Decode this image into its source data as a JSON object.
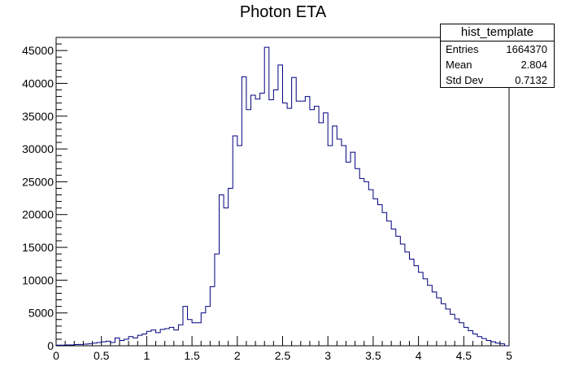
{
  "chart_data": {
    "type": "histogram",
    "title": "Photon ETA",
    "xlim": [
      0,
      5
    ],
    "ylim": [
      0,
      47000
    ],
    "bin_width": 0.05,
    "line_color": "#00007f",
    "x_ticks": [
      "0",
      "0.5",
      "1",
      "1.5",
      "2",
      "2.5",
      "3",
      "3.5",
      "4",
      "4.5",
      "5"
    ],
    "y_ticks": [
      "0",
      "5000",
      "10000",
      "15000",
      "20000",
      "25000",
      "30000",
      "35000",
      "40000",
      "45000"
    ],
    "bin_edges_start": 0,
    "counts": [
      100,
      100,
      120,
      130,
      180,
      200,
      250,
      300,
      400,
      500,
      600,
      700,
      500,
      1200,
      800,
      1000,
      1400,
      1200,
      1600,
      1800,
      2200,
      2400,
      2000,
      2500,
      2600,
      2800,
      2400,
      3200,
      6000,
      4000,
      3500,
      3500,
      5000,
      6000,
      9000,
      14000,
      23000,
      21000,
      24000,
      32000,
      30500,
      41000,
      36000,
      38200,
      37600,
      38500,
      45500,
      37500,
      39000,
      42800,
      37000,
      36200,
      40900,
      37300,
      37300,
      38000,
      36000,
      36500,
      34000,
      35500,
      30500,
      33500,
      31500,
      30500,
      28000,
      29500,
      27000,
      25500,
      25000,
      23800,
      22400,
      21500,
      20300,
      19000,
      17800,
      16700,
      15500,
      14300,
      13200,
      12200,
      11200,
      10200,
      9200,
      8200,
      7300,
      6400,
      5600,
      4800,
      4100,
      3500,
      2800,
      2300,
      1800,
      1400,
      1100,
      800,
      600,
      400,
      300,
      0
    ]
  },
  "stats_box": {
    "title": "hist_template",
    "rows": [
      {
        "label": "Entries",
        "value": "1664370"
      },
      {
        "label": "Mean",
        "value": "2.804"
      },
      {
        "label": "Std Dev",
        "value": "0.7132"
      }
    ]
  }
}
